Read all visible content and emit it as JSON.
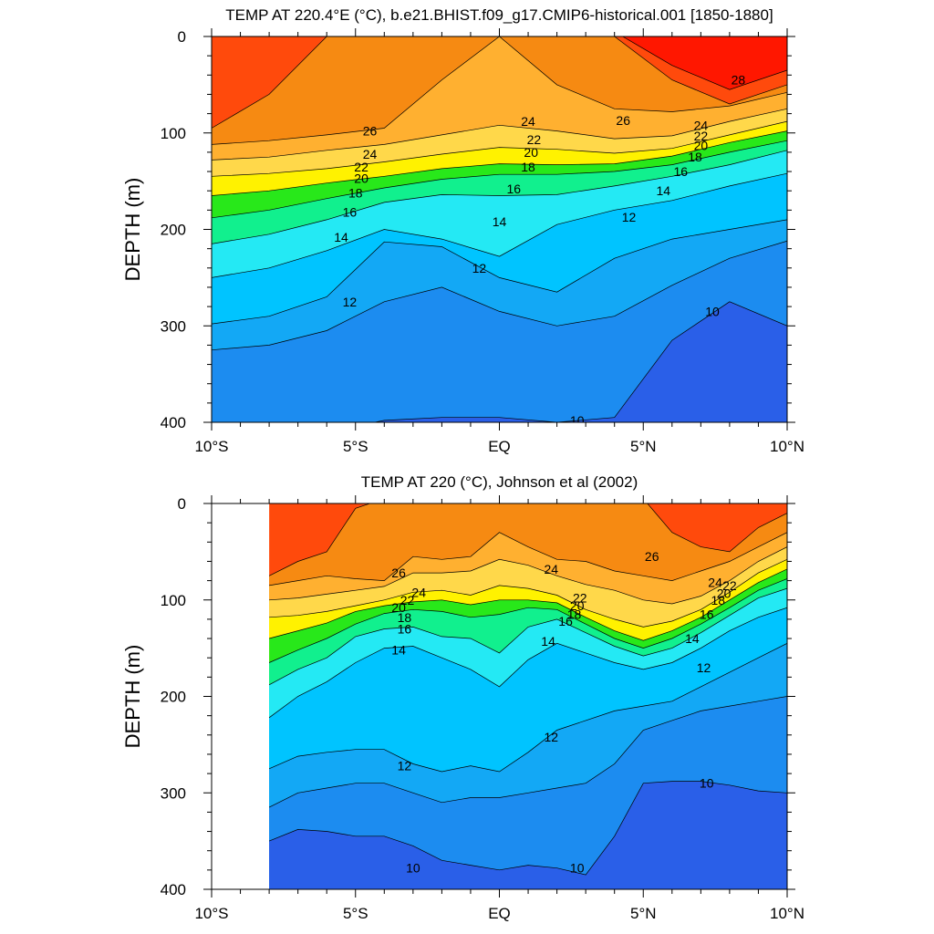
{
  "chart_data": [
    {
      "type": "heatmap",
      "subtype": "filled-contour",
      "title": "TEMP AT 220.4°E (°C), b.e21.BHIST.f09_g17.CMIP6-historical.001 [1850-1880]",
      "ylabel": "DEPTH (m)",
      "xlabel": "",
      "xlim": [
        -10,
        10
      ],
      "ylim": [
        400,
        0
      ],
      "y_inverted": true,
      "x_ticks": [
        -10,
        -5,
        0,
        5,
        10
      ],
      "x_tick_labels": [
        "10°S",
        "5°S",
        "EQ",
        "5°N",
        "10°N"
      ],
      "y_ticks": [
        0,
        100,
        200,
        300,
        400
      ],
      "y_tick_labels": [
        "0",
        "100",
        "200",
        "300",
        "400"
      ],
      "data_x_range": [
        -10,
        10
      ],
      "color_levels": [
        {
          "min": 8,
          "max": 10,
          "color": "#2a5fe8"
        },
        {
          "min": 10,
          "max": 11,
          "color": "#1c8cf0"
        },
        {
          "min": 11,
          "max": 12,
          "color": "#13a8f5"
        },
        {
          "min": 12,
          "max": 13,
          "color": "#00c4ff"
        },
        {
          "min": 13,
          "max": 14,
          "color": "#1ad9ff"
        },
        {
          "min": 14,
          "max": 15,
          "color": "#24e9f4"
        },
        {
          "min": 15,
          "max": 16,
          "color": "#1cf2d8"
        },
        {
          "min": 16,
          "max": 17,
          "color": "#11f08e"
        },
        {
          "min": 17,
          "max": 18,
          "color": "#00ea3c"
        },
        {
          "min": 18,
          "max": 19,
          "color": "#28e81a"
        },
        {
          "min": 19,
          "max": 20,
          "color": "#8af20d"
        },
        {
          "min": 20,
          "max": 21,
          "color": "#fff200"
        },
        {
          "min": 21,
          "max": 22,
          "color": "#ffea3d"
        },
        {
          "min": 22,
          "max": 23,
          "color": "#ffd84a"
        },
        {
          "min": 23,
          "max": 24,
          "color": "#ffc43c"
        },
        {
          "min": 24,
          "max": 25,
          "color": "#ffb030"
        },
        {
          "min": 25,
          "max": 26,
          "color": "#fb9d22"
        },
        {
          "min": 26,
          "max": 27,
          "color": "#f68a12"
        },
        {
          "min": 27,
          "max": 28,
          "color": "#ff4a0c"
        },
        {
          "min": 28,
          "max": 30,
          "color": "#ff1700"
        }
      ],
      "isotherm_depth_profiles": {
        "lat": [
          -10,
          -8,
          -6,
          -4,
          -2,
          0,
          2,
          4,
          6,
          8,
          10
        ],
        "t28": [
          -5,
          -5,
          -5,
          -5,
          -5,
          -5,
          -5,
          -5,
          30,
          55,
          35
        ],
        "t27": [
          95,
          60,
          0,
          -5,
          -5,
          -5,
          -5,
          0,
          45,
          70,
          50
        ],
        "t26": [
          112,
          108,
          102,
          95,
          45,
          0,
          50,
          75,
          78,
          72,
          58
        ],
        "t24": [
          128,
          125,
          118,
          112,
          102,
          92,
          98,
          106,
          103,
          88,
          75
        ],
        "t22": [
          145,
          142,
          137,
          130,
          122,
          115,
          117,
          121,
          116,
          102,
          88
        ],
        "t20": [
          165,
          160,
          152,
          145,
          137,
          132,
          133,
          132,
          124,
          110,
          98
        ],
        "t18": [
          188,
          180,
          168,
          157,
          148,
          143,
          143,
          140,
          133,
          120,
          108
        ],
        "t16": [
          215,
          205,
          190,
          172,
          164,
          165,
          164,
          155,
          145,
          133,
          118
        ],
        "t14": [
          250,
          240,
          222,
          200,
          210,
          228,
          195,
          180,
          170,
          155,
          142
        ],
        "t12": [
          298,
          290,
          270,
          213,
          218,
          250,
          265,
          230,
          210,
          200,
          190
        ],
        "t11": [
          325,
          320,
          305,
          275,
          260,
          285,
          300,
          290,
          258,
          230,
          212
        ],
        "t10": [
          410,
          410,
          410,
          398,
          395,
          395,
          400,
          395,
          315,
          275,
          300
        ]
      },
      "contour_labels": [
        {
          "text": "28",
          "lat": 8.3,
          "depth": 45
        },
        {
          "text": "26",
          "lat": -4.5,
          "depth": 98
        },
        {
          "text": "26",
          "lat": 4.3,
          "depth": 87
        },
        {
          "text": "24",
          "lat": -4.5,
          "depth": 122
        },
        {
          "text": "24",
          "lat": 1.0,
          "depth": 88
        },
        {
          "text": "24",
          "lat": 7.0,
          "depth": 92
        },
        {
          "text": "22",
          "lat": -4.8,
          "depth": 135
        },
        {
          "text": "22",
          "lat": 1.2,
          "depth": 107
        },
        {
          "text": "22",
          "lat": 7.0,
          "depth": 103
        },
        {
          "text": "20",
          "lat": -4.8,
          "depth": 147
        },
        {
          "text": "20",
          "lat": 1.1,
          "depth": 120
        },
        {
          "text": "20",
          "lat": 7.0,
          "depth": 113
        },
        {
          "text": "18",
          "lat": -5.0,
          "depth": 162
        },
        {
          "text": "18",
          "lat": 1.0,
          "depth": 135
        },
        {
          "text": "18",
          "lat": 6.8,
          "depth": 125
        },
        {
          "text": "16",
          "lat": -5.2,
          "depth": 182
        },
        {
          "text": "16",
          "lat": 0.5,
          "depth": 158
        },
        {
          "text": "16",
          "lat": 6.3,
          "depth": 140
        },
        {
          "text": "14",
          "lat": -5.5,
          "depth": 208
        },
        {
          "text": "14",
          "lat": 0.0,
          "depth": 192
        },
        {
          "text": "14",
          "lat": 5.7,
          "depth": 160
        },
        {
          "text": "12",
          "lat": -5.2,
          "depth": 275
        },
        {
          "text": "12",
          "lat": -0.7,
          "depth": 240
        },
        {
          "text": "12",
          "lat": 4.5,
          "depth": 187
        },
        {
          "text": "10",
          "lat": 7.4,
          "depth": 285
        },
        {
          "text": "10",
          "lat": 2.7,
          "depth": 398
        }
      ]
    },
    {
      "type": "heatmap",
      "subtype": "filled-contour",
      "title": "TEMP AT 220 (°C), Johnson et al (2002)",
      "ylabel": "DEPTH (m)",
      "xlabel": "",
      "xlim": [
        -10,
        10
      ],
      "ylim": [
        400,
        0
      ],
      "y_inverted": true,
      "x_ticks": [
        -10,
        -5,
        0,
        5,
        10
      ],
      "x_tick_labels": [
        "10°S",
        "5°S",
        "EQ",
        "5°N",
        "10°N"
      ],
      "y_ticks": [
        0,
        100,
        200,
        300,
        400
      ],
      "y_tick_labels": [
        "0",
        "100",
        "200",
        "300",
        "400"
      ],
      "data_x_range": [
        -8,
        10
      ],
      "isotherm_depth_profiles": {
        "lat": [
          -8,
          -7,
          -6,
          -5,
          -4,
          -3,
          -2,
          -1,
          0,
          1,
          2,
          3,
          4,
          5,
          6,
          7,
          8,
          9,
          10
        ],
        "t27": [
          75,
          60,
          50,
          5,
          -5,
          -5,
          -5,
          -5,
          -5,
          -5,
          -5,
          -5,
          -5,
          -5,
          30,
          45,
          50,
          25,
          10
        ],
        "t26": [
          85,
          80,
          75,
          78,
          80,
          55,
          58,
          55,
          30,
          45,
          58,
          60,
          70,
          75,
          80,
          70,
          60,
          45,
          30
        ],
        "t24": [
          100,
          98,
          94,
          90,
          86,
          72,
          72,
          70,
          58,
          64,
          75,
          84,
          90,
          100,
          104,
          96,
          80,
          60,
          45
        ],
        "t22": [
          118,
          116,
          112,
          106,
          100,
          92,
          90,
          95,
          85,
          88,
          95,
          110,
          120,
          128,
          122,
          110,
          92,
          72,
          58
        ],
        "t20": [
          140,
          132,
          124,
          112,
          106,
          102,
          100,
          105,
          100,
          100,
          103,
          118,
          132,
          142,
          132,
          118,
          100,
          82,
          68
        ],
        "t18": [
          165,
          152,
          140,
          125,
          114,
          110,
          112,
          118,
          115,
          108,
          110,
          125,
          140,
          150,
          140,
          125,
          108,
          90,
          78
        ],
        "t16": [
          188,
          172,
          160,
          138,
          130,
          128,
          138,
          140,
          155,
          128,
          120,
          134,
          148,
          158,
          150,
          134,
          116,
          98,
          88
        ],
        "t14": [
          222,
          200,
          185,
          165,
          150,
          148,
          160,
          172,
          190,
          162,
          145,
          155,
          165,
          172,
          165,
          150,
          132,
          118,
          108
        ],
        "t12": [
          275,
          262,
          258,
          255,
          255,
          270,
          278,
          272,
          278,
          258,
          235,
          225,
          215,
          210,
          205,
          190,
          175,
          160,
          145
        ],
        "t11": [
          315,
          300,
          295,
          290,
          290,
          300,
          310,
          305,
          305,
          300,
          295,
          290,
          270,
          235,
          225,
          215,
          210,
          205,
          200
        ],
        "t10": [
          350,
          338,
          340,
          345,
          345,
          355,
          370,
          375,
          380,
          375,
          378,
          385,
          345,
          290,
          288,
          288,
          292,
          298,
          300
        ]
      },
      "contour_labels": [
        {
          "text": "26",
          "lat": -3.5,
          "depth": 72
        },
        {
          "text": "26",
          "lat": 5.3,
          "depth": 55
        },
        {
          "text": "24",
          "lat": -2.8,
          "depth": 92
        },
        {
          "text": "24",
          "lat": 1.8,
          "depth": 68
        },
        {
          "text": "24",
          "lat": 7.5,
          "depth": 82
        },
        {
          "text": "22",
          "lat": -3.2,
          "depth": 100
        },
        {
          "text": "22",
          "lat": 2.8,
          "depth": 98
        },
        {
          "text": "22",
          "lat": 8.0,
          "depth": 85
        },
        {
          "text": "20",
          "lat": -3.5,
          "depth": 108
        },
        {
          "text": "20",
          "lat": 2.7,
          "depth": 106
        },
        {
          "text": "20",
          "lat": 7.8,
          "depth": 93
        },
        {
          "text": "18",
          "lat": -3.3,
          "depth": 118
        },
        {
          "text": "18",
          "lat": 2.6,
          "depth": 115
        },
        {
          "text": "18",
          "lat": 7.6,
          "depth": 100
        },
        {
          "text": "16",
          "lat": -3.3,
          "depth": 130
        },
        {
          "text": "16",
          "lat": 2.3,
          "depth": 122
        },
        {
          "text": "16",
          "lat": 7.2,
          "depth": 115
        },
        {
          "text": "14",
          "lat": -3.5,
          "depth": 152
        },
        {
          "text": "14",
          "lat": 1.7,
          "depth": 143
        },
        {
          "text": "14",
          "lat": 6.7,
          "depth": 140
        },
        {
          "text": "12",
          "lat": 1.8,
          "depth": 242
        },
        {
          "text": "12",
          "lat": -3.3,
          "depth": 272
        },
        {
          "text": "12",
          "lat": 7.1,
          "depth": 170
        },
        {
          "text": "10",
          "lat": 7.2,
          "depth": 290
        },
        {
          "text": "10",
          "lat": -3.0,
          "depth": 378
        },
        {
          "text": "10",
          "lat": 2.7,
          "depth": 378
        }
      ]
    }
  ]
}
